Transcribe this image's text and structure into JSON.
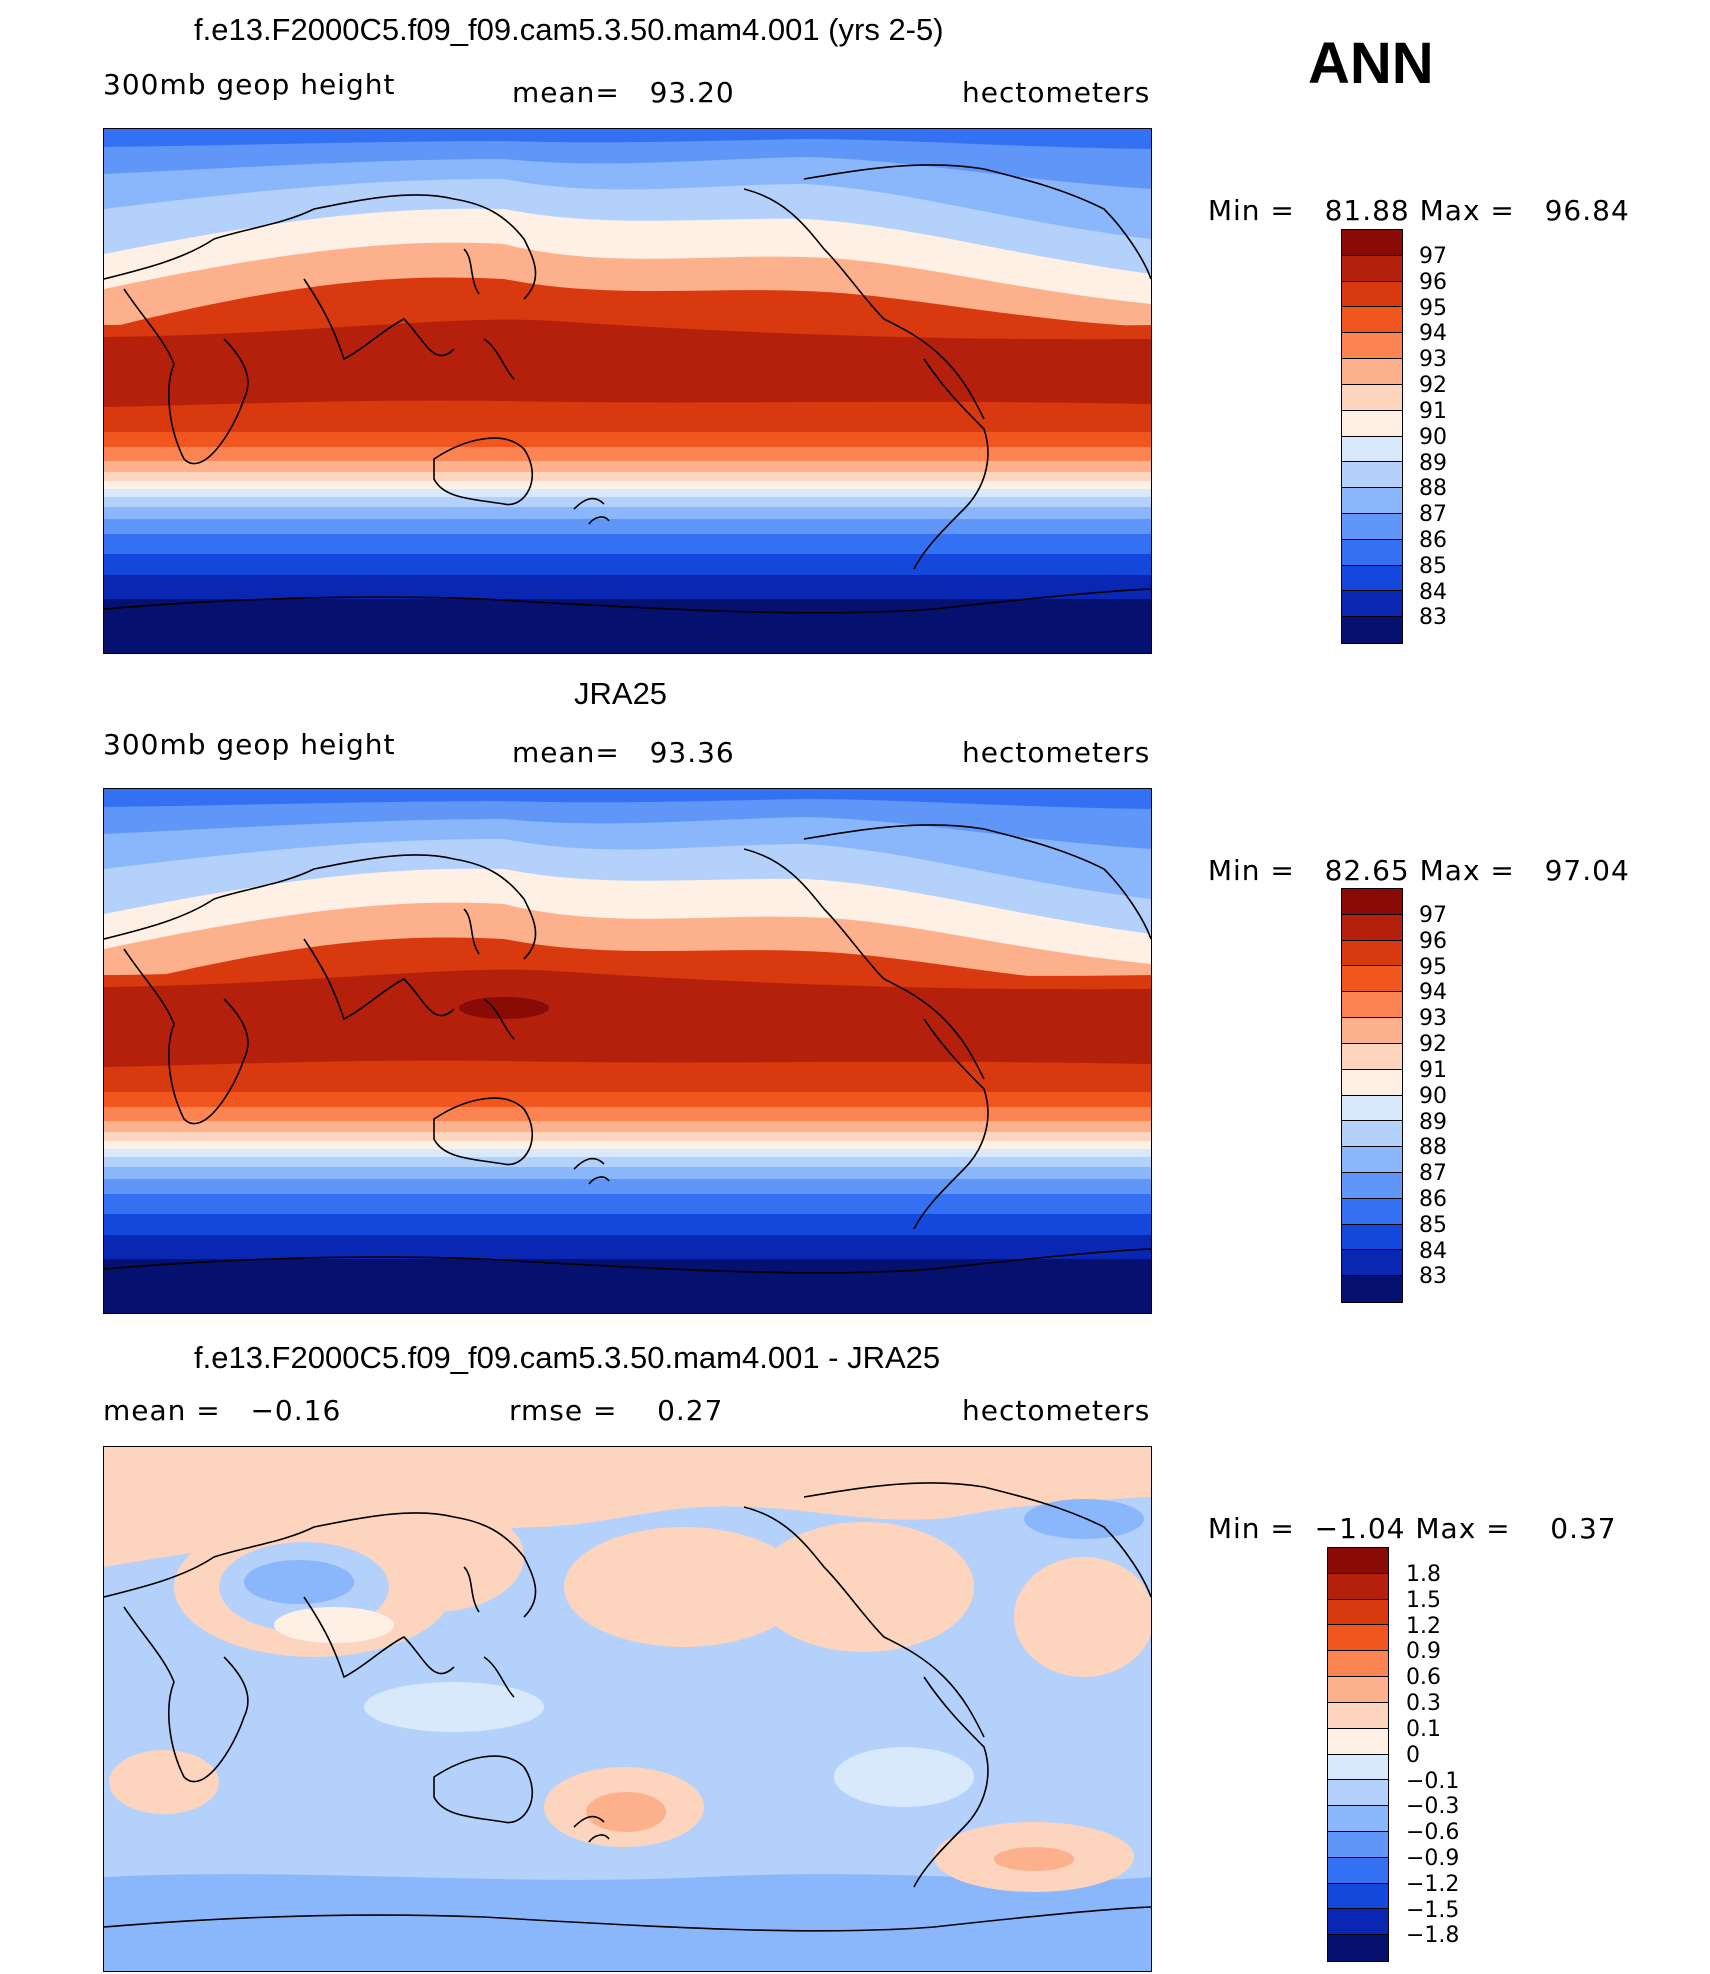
{
  "season": "ANN",
  "units": "hectometers",
  "panels": [
    {
      "title": "f.e13.F2000C5.f09_f09.cam5.3.50.mam4.001 (yrs 2-5)",
      "variable": "300mb geop height",
      "mean_text": "mean=   93.20",
      "minmax": {
        "min_label": "Min =",
        "min": "81.88",
        "max_label": "Max =",
        "max": "96.84"
      }
    },
    {
      "title": "JRA25",
      "variable": "300mb geop height",
      "mean_text": "mean=   93.36",
      "minmax": {
        "min_label": "Min =",
        "min": "82.65",
        "max_label": "Max =",
        "max": "97.04"
      }
    },
    {
      "title": "f.e13.F2000C5.f09_f09.cam5.3.50.mam4.001 - JRA25",
      "mean_text": "mean =   −0.16",
      "rmse_text": "rmse =    0.27",
      "minmax": {
        "min_label": "Min =",
        "min": "−1.04",
        "max_label": "Max =",
        "max": "0.37"
      }
    }
  ],
  "colorbar_abs": {
    "levels": [
      "97",
      "96",
      "95",
      "94",
      "93",
      "92",
      "91",
      "90",
      "89",
      "88",
      "87",
      "86",
      "85",
      "84",
      "83"
    ],
    "colors": [
      "#8a0a05",
      "#b4200c",
      "#d8390e",
      "#f0561e",
      "#fb8452",
      "#fdb08c",
      "#fdd4bd",
      "#fef0e4",
      "#d8e9fc",
      "#b4d1fc",
      "#8ab6fb",
      "#5f96f8",
      "#3371f2",
      "#1447dc",
      "#0a27b4",
      "#06106e"
    ]
  },
  "colorbar_diff": {
    "levels": [
      "1.8",
      "1.5",
      "1.2",
      "0.9",
      "0.6",
      "0.3",
      "0.1",
      "0",
      "−0.1",
      "−0.3",
      "−0.6",
      "−0.9",
      "−1.2",
      "−1.5",
      "−1.8"
    ],
    "colors": [
      "#8a0a05",
      "#b4200c",
      "#d8390e",
      "#f0561e",
      "#fb8452",
      "#fdb08c",
      "#fdd4bd",
      "#fef0e4",
      "#d8e9fc",
      "#b4d1fc",
      "#8ab6fb",
      "#5f96f8",
      "#3371f2",
      "#1447dc",
      "#0a27b4",
      "#06106e"
    ]
  }
}
